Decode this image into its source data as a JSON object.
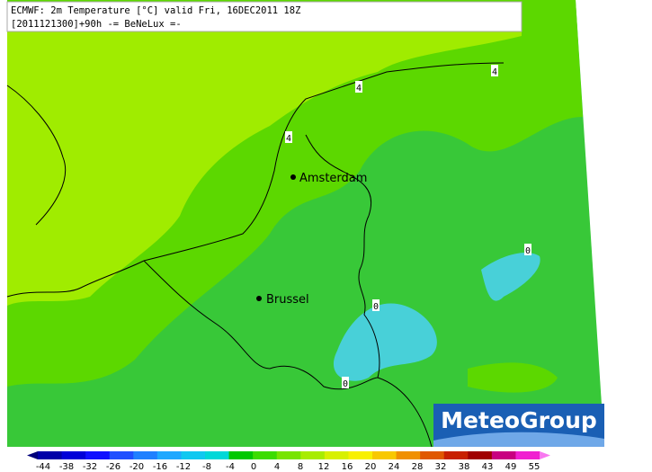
{
  "header": {
    "line1": "ECMWF: 2m Temperature [°C] valid Fri, 16DEC2011 18Z",
    "line2": "[2011121300]+90h -= BeNeLux =-"
  },
  "cities": [
    {
      "label": "Amsterdam"
    },
    {
      "label": "Brussel"
    }
  ],
  "contour_labels": [
    "4",
    "4",
    "4",
    "0",
    "0",
    "0"
  ],
  "logo": {
    "text": "MeteoGroup"
  },
  "colorbar": {
    "labels": [
      "-44",
      "-38",
      "-32",
      "-26",
      "-20",
      "-16",
      "-12",
      "-8",
      "-4",
      "0",
      "4",
      "8",
      "12",
      "16",
      "20",
      "24",
      "28",
      "32",
      "38",
      "43",
      "49",
      "55"
    ],
    "colors": [
      "#00007a",
      "#0000a8",
      "#0000d8",
      "#1010ff",
      "#2050ff",
      "#2080ff",
      "#20a8ff",
      "#10c8f0",
      "#00d8d8",
      "#00c800",
      "#3cdc00",
      "#78e400",
      "#a8ec00",
      "#d8f000",
      "#f8f000",
      "#f8c800",
      "#f09000",
      "#e05800",
      "#c82000",
      "#a00000",
      "#c80080",
      "#f020d0",
      "#f878f0"
    ]
  }
}
